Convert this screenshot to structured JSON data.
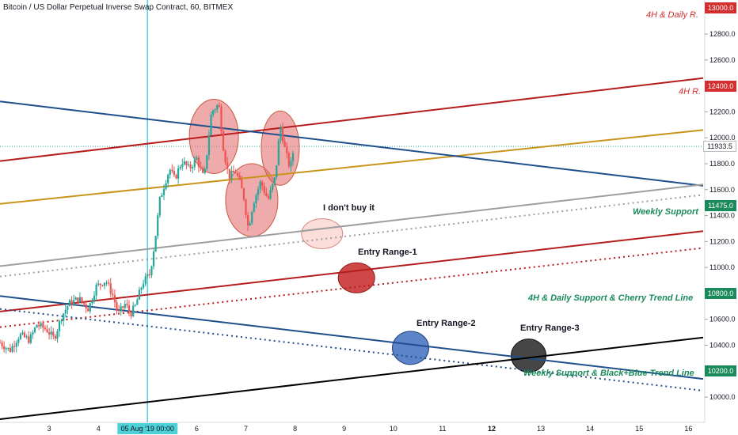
{
  "header": {
    "title": "Bitcoin / US Dollar Perpetual Inverse Swap Contract, 60, BITMEX"
  },
  "annotations": {
    "daily_r": "4H & Daily R.",
    "four_h_r": "4H R.",
    "weekly_support": "Weekly Support",
    "cherry": "4H & Daily Support & Cherry Trend Line",
    "black_blue": "Weekly Support & Black+Blue Trend Line",
    "dont_buy": "I don't buy it",
    "entry1": "Entry Range-1",
    "entry2": "Entry Range-2",
    "entry3": "Entry Range-3"
  },
  "price_labels": [
    {
      "text": "13000.0",
      "value": 13000,
      "color": "#d32f2f"
    },
    {
      "text": "12400.0",
      "value": 12400,
      "color": "#d32f2f"
    },
    {
      "text": "11933.5",
      "value": 11933.5,
      "color": "#ffffff"
    },
    {
      "text": "11475.0",
      "value": 11475,
      "color": "#1b8a5a"
    },
    {
      "text": "10800.0",
      "value": 10800,
      "color": "#1b8a5a"
    },
    {
      "text": "10200.0",
      "value": 10200,
      "color": "#1b8a5a"
    }
  ],
  "colors": {
    "up": "#26a69a",
    "down": "#ef5350",
    "red_line": "#b71c1c",
    "gold_line": "#c8941a",
    "blue_line": "#1f4e8c",
    "gray_line": "#9e9e9e",
    "black_line": "#000000",
    "cursor": "#4dd0d8"
  },
  "chart_data": {
    "type": "candlestick",
    "symbol": "BTCUSD",
    "exchange": "BITMEX",
    "interval": "60",
    "y_ticks": [
      10000,
      10200,
      10400,
      10600,
      10800,
      11000,
      11200,
      11400,
      11600,
      11800,
      12000,
      12200,
      12400,
      12600,
      12800,
      13000
    ],
    "y_tick_labels": [
      "10000.0",
      "10200.0",
      "10400.0",
      "10600.0",
      "10800.0",
      "11000.0",
      "11200.0",
      "11400.0",
      "11600.0",
      "11800.0",
      "12000.0",
      "12200.0",
      "12400.0",
      "12600.0",
      "12800.0",
      "13000.0"
    ],
    "ylim": [
      9830,
      13050
    ],
    "x_ticks": [
      {
        "label": "3",
        "day": 3
      },
      {
        "label": "4",
        "day": 4
      },
      {
        "label": "05 Aug '19  00:00",
        "day": 5
      },
      {
        "label": "6",
        "day": 6
      },
      {
        "label": "7",
        "day": 7
      },
      {
        "label": "8",
        "day": 8
      },
      {
        "label": "9",
        "day": 9
      },
      {
        "label": "10",
        "day": 10
      },
      {
        "label": "11",
        "day": 11
      },
      {
        "label": "12",
        "day": 12
      },
      {
        "label": "13",
        "day": 13
      },
      {
        "label": "14",
        "day": 14
      },
      {
        "label": "15",
        "day": 15
      },
      {
        "label": "16",
        "day": 16
      }
    ],
    "xlim": [
      2.0,
      16.3
    ],
    "price_path": [
      [
        2.0,
        10420
      ],
      [
        2.2,
        10360
      ],
      [
        2.4,
        10480
      ],
      [
        2.6,
        10440
      ],
      [
        2.75,
        10560
      ],
      [
        2.95,
        10520
      ],
      [
        3.1,
        10450
      ],
      [
        3.25,
        10620
      ],
      [
        3.4,
        10720
      ],
      [
        3.6,
        10760
      ],
      [
        3.8,
        10680
      ],
      [
        3.95,
        10850
      ],
      [
        4.15,
        10900
      ],
      [
        4.3,
        10780
      ],
      [
        4.4,
        10640
      ],
      [
        4.55,
        10720
      ],
      [
        4.65,
        10640
      ],
      [
        4.75,
        10700
      ],
      [
        4.9,
        10880
      ],
      [
        5.05,
        10950
      ],
      [
        5.15,
        11200
      ],
      [
        5.25,
        11520
      ],
      [
        5.35,
        11650
      ],
      [
        5.45,
        11760
      ],
      [
        5.55,
        11680
      ],
      [
        5.7,
        11820
      ],
      [
        5.85,
        11760
      ],
      [
        6.0,
        11840
      ],
      [
        6.15,
        11680
      ],
      [
        6.3,
        12200
      ],
      [
        6.45,
        12260
      ],
      [
        6.55,
        11900
      ],
      [
        6.65,
        11700
      ],
      [
        6.8,
        11740
      ],
      [
        6.95,
        11560
      ],
      [
        7.05,
        11300
      ],
      [
        7.15,
        11500
      ],
      [
        7.3,
        11660
      ],
      [
        7.45,
        11520
      ],
      [
        7.6,
        11700
      ],
      [
        7.7,
        12100
      ],
      [
        7.8,
        11900
      ],
      [
        7.9,
        11760
      ],
      [
        7.98,
        11933.5
      ]
    ],
    "trend_lines": [
      {
        "name": "red_resistance",
        "style": "solid",
        "p1": [
          2.0,
          11820
        ],
        "p2": [
          16.3,
          12460
        ]
      },
      {
        "name": "gold",
        "style": "solid",
        "p1": [
          2.0,
          11490
        ],
        "p2": [
          16.3,
          12060
        ]
      },
      {
        "name": "blue_upper",
        "style": "solid",
        "p1": [
          2.0,
          12280
        ],
        "p2": [
          16.3,
          11630
        ]
      },
      {
        "name": "gray",
        "style": "solid",
        "p1": [
          2.0,
          11010
        ],
        "p2": [
          16.3,
          11640
        ]
      },
      {
        "name": "gray_dotted",
        "style": "dotted",
        "p1": [
          2.0,
          10930
        ],
        "p2": [
          16.3,
          11560
        ]
      },
      {
        "name": "cherry",
        "style": "solid",
        "p1": [
          2.0,
          10660
        ],
        "p2": [
          16.3,
          11280
        ]
      },
      {
        "name": "cherry_dotted",
        "style": "dotted",
        "p1": [
          2.0,
          10540
        ],
        "p2": [
          16.3,
          11150
        ]
      },
      {
        "name": "blue_lower",
        "style": "solid",
        "p1": [
          2.0,
          10780
        ],
        "p2": [
          16.3,
          10140
        ]
      },
      {
        "name": "blue_dotted",
        "style": "dotted",
        "p1": [
          2.0,
          10680
        ],
        "p2": [
          16.3,
          10050
        ]
      },
      {
        "name": "black",
        "style": "solid",
        "p1": [
          2.0,
          9830
        ],
        "p2": [
          16.3,
          10460
        ]
      }
    ],
    "cursor_day": 5.0,
    "ellipses": [
      {
        "name": "top-left",
        "cx": 6.35,
        "cy": 12010,
        "fill": "#e57373"
      },
      {
        "name": "middle-dip",
        "cx": 7.12,
        "cy": 11520,
        "fill": "#e57373"
      },
      {
        "name": "top-right",
        "cx": 7.7,
        "cy": 11920,
        "fill": "#e57373"
      },
      {
        "name": "i-dont-buy",
        "cx": 8.55,
        "cy": 11260,
        "fill": "#f8c7c2"
      },
      {
        "name": "entry-1",
        "cx": 9.25,
        "cy": 10920,
        "fill": "#c62828"
      },
      {
        "name": "entry-2",
        "cx": 10.35,
        "cy": 10380,
        "fill": "#3f6fbf"
      },
      {
        "name": "entry-3",
        "cx": 12.75,
        "cy": 10320,
        "fill": "#262626"
      }
    ]
  }
}
